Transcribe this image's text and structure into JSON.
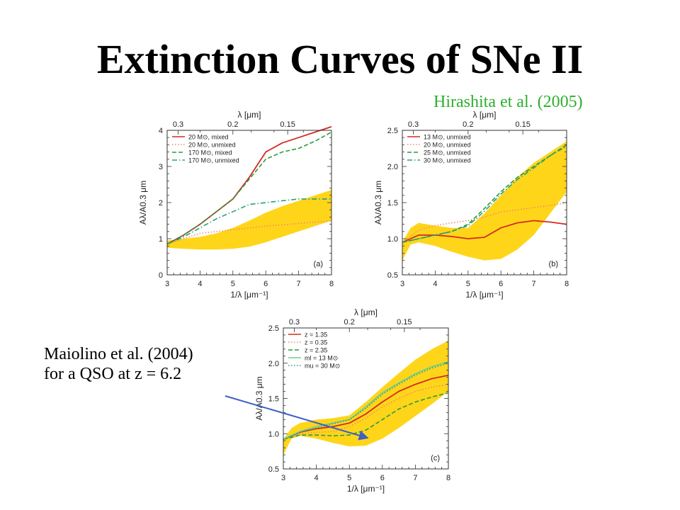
{
  "title": "Extinction Curves of SNe II",
  "citation_top": "Hirashita et al. (2005)",
  "citation_left": [
    "Maiolino et al. (2004)",
    "for a QSO at z = 6.2"
  ],
  "colors": {
    "red": "#d42a20",
    "orange_dotted": "#f08a6a",
    "green_dashed": "#2c9a3c",
    "teal_dashdot": "#26a080",
    "light_green": "#6cd08c",
    "band": "#ffd51a",
    "arrow": "#3c5fc8"
  },
  "chart_data": [
    {
      "type": "line",
      "panel_label": "(a)",
      "xlabel": "1/λ [μm⁻¹]",
      "ylabel": "Aλ/A0.3 μm",
      "top_axis_label": "λ [μm]",
      "top_ticks": [
        "0.3",
        "0.2",
        "0.15"
      ],
      "xlim": [
        3,
        8
      ],
      "ylim": [
        0,
        4
      ],
      "xticks": [
        "3",
        "4",
        "5",
        "6",
        "7",
        "8"
      ],
      "yticks": [
        "0",
        "1",
        "2",
        "3",
        "4"
      ],
      "band": {
        "x": [
          3,
          3.5,
          4,
          4.5,
          5,
          5.5,
          6,
          6.5,
          7,
          7.5,
          8
        ],
        "lower": [
          0.75,
          0.72,
          0.7,
          0.7,
          0.72,
          0.78,
          0.9,
          1.05,
          1.2,
          1.35,
          1.5
        ],
        "upper": [
          0.95,
          1.0,
          1.05,
          1.15,
          1.3,
          1.5,
          1.72,
          1.9,
          2.05,
          2.2,
          2.35
        ]
      },
      "series": [
        {
          "name": "20 M⊙, mixed",
          "style": "solid",
          "color": "#d42a20",
          "x": [
            3,
            3.5,
            4,
            4.5,
            5,
            5.5,
            6,
            6.5,
            7,
            7.5,
            8
          ],
          "y": [
            0.85,
            1.1,
            1.4,
            1.75,
            2.1,
            2.7,
            3.4,
            3.65,
            3.8,
            3.95,
            4.1
          ]
        },
        {
          "name": "20 M⊙, unmixed",
          "style": "dotted",
          "color": "#f08a6a",
          "x": [
            3,
            4,
            5,
            6,
            7,
            8
          ],
          "y": [
            0.85,
            1.15,
            1.25,
            1.35,
            1.42,
            1.5
          ]
        },
        {
          "name": "170 M⊙, mixed",
          "style": "dashed",
          "color": "#2c9a3c",
          "x": [
            3,
            3.5,
            4,
            4.5,
            5,
            5.5,
            6,
            6.5,
            7,
            7.5,
            8
          ],
          "y": [
            0.85,
            1.1,
            1.4,
            1.75,
            2.1,
            2.65,
            3.2,
            3.4,
            3.5,
            3.7,
            3.95
          ]
        },
        {
          "name": "170 M⊙, unmixed",
          "style": "dashdot",
          "color": "#26a080",
          "x": [
            3,
            3.5,
            4,
            4.5,
            5,
            5.5,
            6,
            6.5,
            7,
            7.5,
            8
          ],
          "y": [
            0.85,
            1.05,
            1.3,
            1.55,
            1.75,
            1.95,
            2.0,
            2.05,
            2.1,
            2.1,
            2.1
          ]
        }
      ]
    },
    {
      "type": "line",
      "panel_label": "(b)",
      "xlabel": "1/λ [μm⁻¹]",
      "ylabel": "Aλ/A0.3 μm",
      "top_axis_label": "λ [μm]",
      "top_ticks": [
        "0.3",
        "0.2",
        "0.15"
      ],
      "xlim": [
        3,
        8
      ],
      "ylim": [
        0.5,
        2.5
      ],
      "xticks": [
        "3",
        "4",
        "5",
        "6",
        "7",
        "8"
      ],
      "yticks": [
        "0.5",
        "1.0",
        "1.5",
        "2.0",
        "2.5"
      ],
      "band": {
        "x": [
          3,
          3.25,
          3.5,
          4,
          4.5,
          5,
          5.5,
          6,
          6.5,
          7,
          7.5,
          8
        ],
        "lower": [
          0.7,
          0.92,
          0.95,
          0.9,
          0.82,
          0.75,
          0.7,
          0.72,
          0.85,
          1.05,
          1.35,
          1.65
        ],
        "upper": [
          0.95,
          1.15,
          1.22,
          1.18,
          1.15,
          1.15,
          1.35,
          1.6,
          1.85,
          2.05,
          2.2,
          2.35
        ]
      },
      "series": [
        {
          "name": "13 M⊙, unmixed",
          "style": "solid",
          "color": "#d42a20",
          "x": [
            3,
            3.5,
            4,
            4.5,
            5,
            5.5,
            6,
            6.5,
            7,
            7.5,
            8
          ],
          "y": [
            0.95,
            1.05,
            1.05,
            1.03,
            1.0,
            1.02,
            1.15,
            1.22,
            1.25,
            1.23,
            1.2
          ]
        },
        {
          "name": "20 M⊙, unmixed",
          "style": "dotted",
          "color": "#f08a6a",
          "x": [
            3,
            3.5,
            4,
            4.5,
            5,
            5.5,
            6,
            6.5,
            7,
            7.5,
            8
          ],
          "y": [
            0.95,
            1.12,
            1.18,
            1.22,
            1.25,
            1.3,
            1.37,
            1.4,
            1.43,
            1.46,
            1.5
          ]
        },
        {
          "name": "25 M⊙, unmixed",
          "style": "dashed",
          "color": "#2c9a3c",
          "x": [
            3,
            3.5,
            4,
            4.5,
            5,
            5.5,
            6,
            6.5,
            7,
            7.5,
            8
          ],
          "y": [
            0.95,
            1.0,
            1.05,
            1.1,
            1.2,
            1.42,
            1.65,
            1.85,
            2.0,
            2.15,
            2.3
          ]
        },
        {
          "name": "30 M⊙, unmixed",
          "style": "dashdot",
          "color": "#26a080",
          "x": [
            3,
            3.5,
            4,
            4.5,
            5,
            5.5,
            6,
            6.5,
            7,
            7.5,
            8
          ],
          "y": [
            0.95,
            1.0,
            1.05,
            1.1,
            1.18,
            1.38,
            1.62,
            1.82,
            1.98,
            2.15,
            2.28
          ]
        }
      ]
    },
    {
      "type": "line",
      "panel_label": "(c)",
      "xlabel": "1/λ [μm⁻¹]",
      "ylabel": "Aλ/A0.3 μm",
      "top_axis_label": "λ [μm]",
      "top_ticks": [
        "0.3",
        "0.2",
        "0.15"
      ],
      "xlim": [
        3,
        8
      ],
      "ylim": [
        0.5,
        2.5
      ],
      "xticks": [
        "3",
        "4",
        "5",
        "6",
        "7",
        "8"
      ],
      "yticks": [
        "0.5",
        "1.0",
        "1.5",
        "2.0",
        "2.5"
      ],
      "band": {
        "x": [
          3,
          3.25,
          3.5,
          4,
          4.5,
          5,
          5.5,
          6,
          6.5,
          7,
          7.5,
          8
        ],
        "lower": [
          0.7,
          0.93,
          0.97,
          0.93,
          0.87,
          0.82,
          0.83,
          0.93,
          1.08,
          1.25,
          1.42,
          1.6
        ],
        "upper": [
          0.92,
          1.08,
          1.15,
          1.2,
          1.22,
          1.26,
          1.45,
          1.66,
          1.86,
          2.05,
          2.2,
          2.32
        ]
      },
      "series": [
        {
          "name": "z = 1.35",
          "style": "solid",
          "color": "#d42a20",
          "x": [
            3,
            3.5,
            4,
            4.5,
            5,
            5.5,
            6,
            6.5,
            7,
            7.5,
            8
          ],
          "y": [
            0.92,
            1.02,
            1.07,
            1.1,
            1.15,
            1.28,
            1.45,
            1.6,
            1.7,
            1.78,
            1.83
          ]
        },
        {
          "name": "z = 0.35",
          "style": "dotted",
          "color": "#f08a6a",
          "x": [
            3,
            3.5,
            4,
            4.5,
            5,
            5.5,
            6,
            6.5,
            7,
            7.5,
            8
          ],
          "y": [
            0.92,
            1.0,
            1.02,
            1.03,
            1.1,
            1.22,
            1.38,
            1.5,
            1.6,
            1.66,
            1.7
          ]
        },
        {
          "name": "z = 2.35",
          "style": "dashed",
          "color": "#2c9a3c",
          "x": [
            3,
            3.5,
            4,
            4.5,
            5,
            5.5,
            6,
            6.5,
            7,
            7.5,
            8
          ],
          "y": [
            0.92,
            0.98,
            0.98,
            0.97,
            0.98,
            1.05,
            1.2,
            1.35,
            1.45,
            1.52,
            1.58
          ]
        },
        {
          "name": "ml = 13 M⊙",
          "style": "solid",
          "color": "#6cd08c",
          "x": [
            3,
            3.5,
            4,
            4.5,
            5,
            5.5,
            6,
            6.5,
            7,
            7.5,
            8
          ],
          "y": [
            0.92,
            1.03,
            1.1,
            1.15,
            1.2,
            1.38,
            1.58,
            1.72,
            1.85,
            1.95,
            2.02
          ]
        },
        {
          "name": "mu = 30 M⊙",
          "style": "dotted",
          "color": "#26a080",
          "x": [
            3,
            3.5,
            4,
            4.5,
            5,
            5.5,
            6,
            6.5,
            7,
            7.5,
            8
          ],
          "y": [
            0.92,
            1.02,
            1.08,
            1.14,
            1.2,
            1.36,
            1.56,
            1.7,
            1.83,
            1.93,
            2.0
          ]
        }
      ]
    }
  ]
}
